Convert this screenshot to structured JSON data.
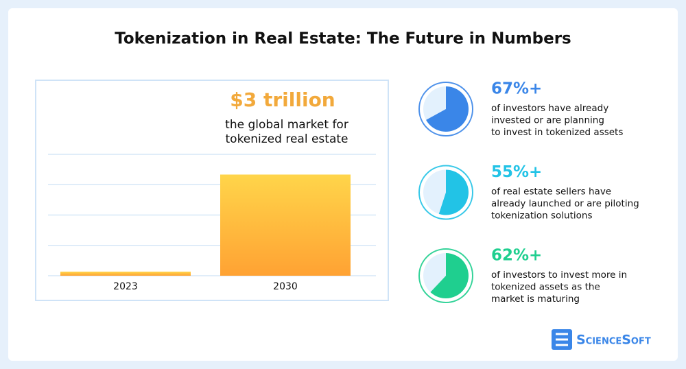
{
  "title": "Tokenization in Real Estate: The Future in Numbers",
  "brand": "ScienceSoft",
  "chart_data": [
    {
      "type": "bar",
      "categories": [
        "2023",
        "2030"
      ],
      "values": [
        0.12,
        3
      ],
      "value_labels": [
        null,
        "$3 trillion"
      ],
      "annotation": [
        "the global market for",
        "tokenized real estate"
      ],
      "ylim": [
        0,
        3.6
      ],
      "yticks": [
        0,
        0.9,
        1.8,
        2.7,
        3.6
      ],
      "grid": true,
      "colors": [
        "#ffd54a",
        "#ffa233"
      ]
    },
    {
      "type": "pie",
      "values": [
        67
      ],
      "value_labels": [
        "67%+"
      ],
      "color": "#3a86e8",
      "description": [
        "of investors have already",
        "invested or are planning",
        "to invest in tokenized assets"
      ]
    },
    {
      "type": "pie",
      "values": [
        55
      ],
      "value_labels": [
        "55%+"
      ],
      "color": "#22c3e6",
      "description": [
        "of real estate sellers have",
        "already launched or are piloting",
        "tokenization solutions"
      ]
    },
    {
      "type": "pie",
      "values": [
        62
      ],
      "value_labels": [
        "62%+"
      ],
      "color": "#1fcf8f",
      "description": [
        "of investors to invest more in",
        "tokenized assets as the",
        "market is maturing"
      ]
    }
  ]
}
